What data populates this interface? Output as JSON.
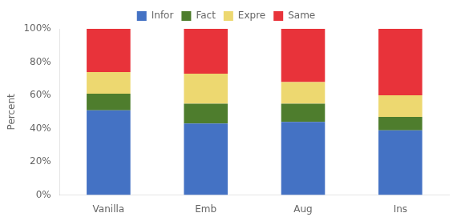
{
  "chart_data": {
    "type": "bar",
    "stacked": true,
    "categories": [
      "Vanilla",
      "Emb",
      "Aug",
      "Ins"
    ],
    "series": [
      {
        "name": "Infor",
        "color": "#4472C4",
        "values": [
          0.51,
          0.43,
          0.44,
          0.39
        ]
      },
      {
        "name": "Fact",
        "color": "#4E7D2D",
        "values": [
          0.1,
          0.12,
          0.11,
          0.08
        ]
      },
      {
        "name": "Expre",
        "color": "#EDD870",
        "values": [
          0.13,
          0.18,
          0.13,
          0.13
        ]
      },
      {
        "name": "Same",
        "color": "#E8333A",
        "values": [
          0.26,
          0.27,
          0.32,
          0.4
        ]
      }
    ],
    "ylabel": "Percent",
    "ylim": [
      0,
      1.0
    ],
    "yticks": [
      {
        "value": 0,
        "label": "0%"
      },
      {
        "value": 0.2,
        "label": "20%"
      },
      {
        "value": 0.4,
        "label": "40%"
      },
      {
        "value": 0.6,
        "label": "60%"
      },
      {
        "value": 0.8,
        "label": "80%"
      },
      {
        "value": 1.0,
        "label": "100%"
      }
    ],
    "grid": false,
    "legend": "top"
  }
}
